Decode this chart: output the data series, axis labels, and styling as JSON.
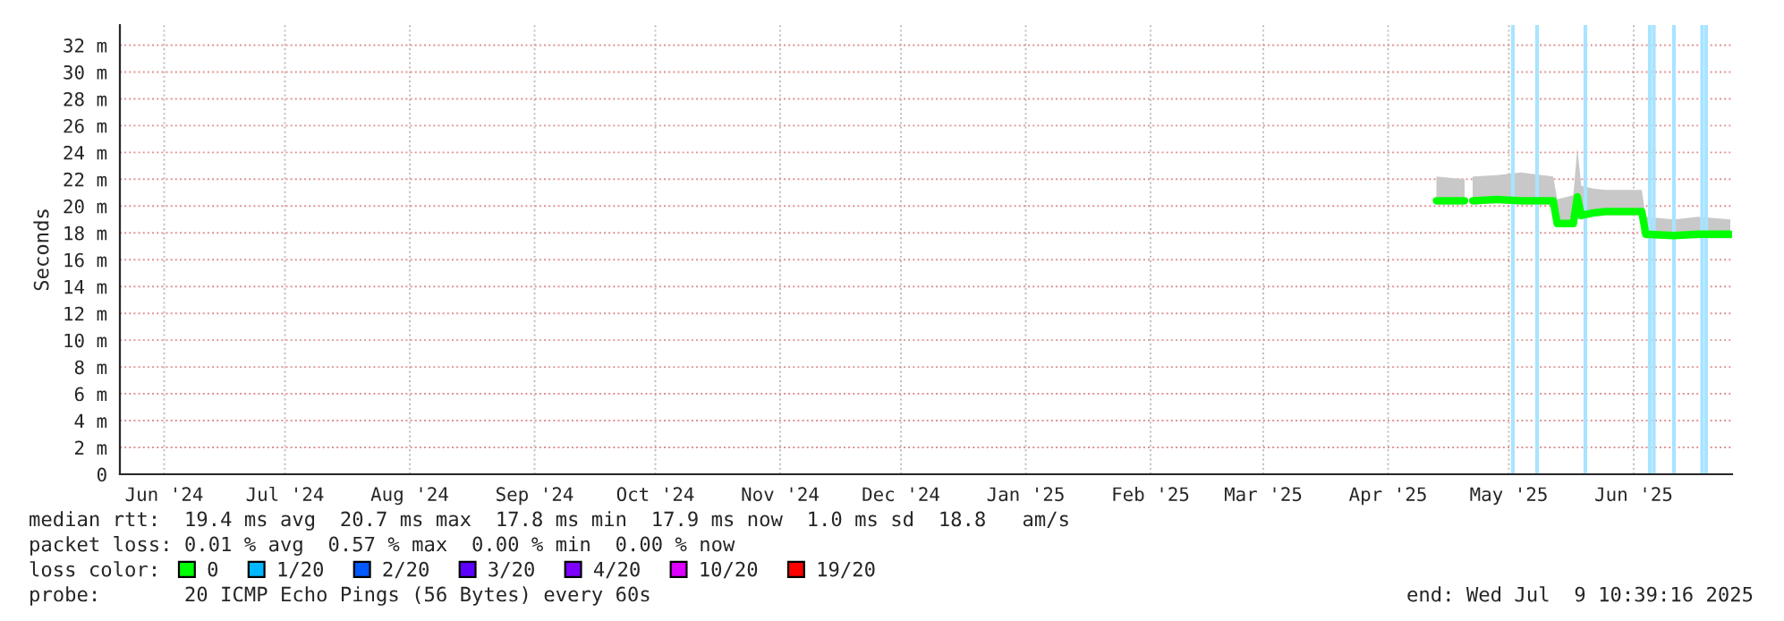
{
  "chart_data": {
    "type": "line",
    "ylabel": "Seconds",
    "x": [
      "2025-04-27",
      "2025-05-04",
      "2025-05-05",
      "2025-05-06",
      "2025-05-12",
      "2025-05-18",
      "2025-05-26",
      "2025-05-27",
      "2025-05-31",
      "2025-06-01",
      "2025-06-02",
      "2025-06-05",
      "2025-06-08",
      "2025-06-17",
      "2025-06-18",
      "2025-06-25",
      "2025-07-01",
      "2025-07-09"
    ],
    "series": [
      {
        "name": "0",
        "color": "#00ff00",
        "values": [
          20.4,
          20.4,
          null,
          20.4,
          20.5,
          20.4,
          20.4,
          18.7,
          18.7,
          20.7,
          19.3,
          19.5,
          19.6,
          19.6,
          17.9,
          17.8,
          17.9,
          17.9
        ],
        "lower": [
          20.1,
          20.1,
          null,
          20.1,
          20.2,
          20.1,
          20.1,
          18.5,
          18.5,
          19.0,
          19.0,
          19.2,
          19.3,
          19.3,
          17.6,
          17.6,
          17.6,
          17.6
        ],
        "upper": [
          22.2,
          22.0,
          null,
          22.2,
          22.3,
          22.5,
          22.2,
          20.5,
          20.8,
          24.3,
          21.5,
          21.3,
          21.2,
          21.2,
          19.2,
          19.0,
          19.2,
          19.0
        ]
      },
      {
        "name": "1/20",
        "color": "#00b8ff",
        "values": [
          null,
          null,
          null,
          null,
          null,
          null,
          null,
          null,
          null,
          null,
          null,
          null,
          null,
          null,
          null,
          null,
          null,
          null
        ]
      },
      {
        "name": "2/20",
        "color": "#0059ff",
        "values": [
          null,
          null,
          null,
          null,
          null,
          null,
          null,
          null,
          null,
          null,
          null,
          null,
          null,
          null,
          null,
          null,
          null,
          null
        ]
      },
      {
        "name": "3/20",
        "color": "#5e00ff",
        "values": [
          null,
          null,
          null,
          null,
          null,
          null,
          null,
          null,
          null,
          null,
          null,
          null,
          null,
          null,
          null,
          null,
          null,
          null
        ]
      },
      {
        "name": "4/20",
        "color": "#7e00ff",
        "values": [
          null,
          null,
          null,
          null,
          null,
          null,
          null,
          null,
          null,
          null,
          null,
          null,
          null,
          null,
          null,
          null,
          null,
          null
        ]
      },
      {
        "name": "10/20",
        "color": "#dd00ff",
        "values": [
          null,
          null,
          null,
          null,
          null,
          null,
          null,
          null,
          null,
          null,
          null,
          null,
          null,
          null,
          null,
          null,
          null,
          null
        ]
      },
      {
        "name": "19/20",
        "color": "#ff0000",
        "values": [
          null,
          null,
          null,
          null,
          null,
          null,
          null,
          null,
          null,
          null,
          null,
          null,
          null,
          null,
          null,
          null,
          null,
          null
        ]
      }
    ],
    "xlim": [
      "2024-06-04",
      "2025-07-09T10:39"
    ],
    "xticks": [
      {
        "value": "2024-06-15",
        "label": "Jun '24"
      },
      {
        "value": "2024-07-15",
        "label": "Jul '24"
      },
      {
        "value": "2024-08-15",
        "label": "Aug '24"
      },
      {
        "value": "2024-09-15",
        "label": "Sep '24"
      },
      {
        "value": "2024-10-15",
        "label": "Oct '24"
      },
      {
        "value": "2024-11-15",
        "label": "Nov '24"
      },
      {
        "value": "2024-12-15",
        "label": "Dec '24"
      },
      {
        "value": "2025-01-15",
        "label": "Jan '25"
      },
      {
        "value": "2025-02-15",
        "label": "Feb '25"
      },
      {
        "value": "2025-03-15",
        "label": "Mar '25"
      },
      {
        "value": "2025-04-15",
        "label": "Apr '25"
      },
      {
        "value": "2025-05-15",
        "label": "May '25"
      },
      {
        "value": "2025-06-15",
        "label": "Jun '25"
      }
    ],
    "ylim": [
      0,
      33.5
    ],
    "yticks": [
      0,
      {
        "value": 2,
        "label": "2 m"
      },
      {
        "value": 4,
        "label": "4 m"
      },
      {
        "value": 6,
        "label": "6 m"
      },
      {
        "value": 8,
        "label": "8 m"
      },
      {
        "value": 10,
        "label": "10 m"
      },
      {
        "value": 12,
        "label": "12 m"
      },
      {
        "value": 14,
        "label": "14 m"
      },
      {
        "value": 16,
        "label": "16 m"
      },
      {
        "value": 18,
        "label": "18 m"
      },
      {
        "value": 20,
        "label": "20 m"
      },
      {
        "value": 22,
        "label": "22 m"
      },
      {
        "value": 24,
        "label": "24 m"
      },
      {
        "value": 26,
        "label": "26 m"
      },
      {
        "value": 28,
        "label": "28 m"
      },
      {
        "value": 30,
        "label": "30 m"
      },
      {
        "value": 32,
        "label": "32 m"
      }
    ],
    "ref_lines": [
      {
        "axis": "x",
        "value": "2025-05-16",
        "color": "#a8e4ff"
      },
      {
        "axis": "x",
        "value": "2025-05-22",
        "color": "#a8e4ff"
      },
      {
        "axis": "x",
        "value": "2025-06-03",
        "color": "#a8e4ff"
      },
      {
        "axis": "x",
        "value": "2025-06-19",
        "color": "#a8e4ff"
      },
      {
        "axis": "x",
        "value": "2025-06-20",
        "color": "#a8e4ff"
      },
      {
        "axis": "x",
        "value": "2025-06-25",
        "color": "#a8e4ff"
      },
      {
        "axis": "x",
        "value": "2025-07-02",
        "color": "#a8e4ff"
      },
      {
        "axis": "x",
        "value": "2025-07-03",
        "color": "#a8e4ff"
      }
    ],
    "legend_title": "loss color:",
    "legend": "bottom",
    "grid": true,
    "marker": "none",
    "line_style": "solid",
    "annotations": [
      "median rtt:  19.4 ms avg  20.7 ms max  17.8 ms min  17.9 ms now  1.0 ms sd  18.8   am/s",
      "packet loss: 0.01 % avg  0.57 % max  0.00 % min  0.00 % now",
      "probe:       20 ICMP Echo Pings (56 Bytes) every 60s",
      "end: Wed Jul  9 10:39:16 2025"
    ]
  }
}
